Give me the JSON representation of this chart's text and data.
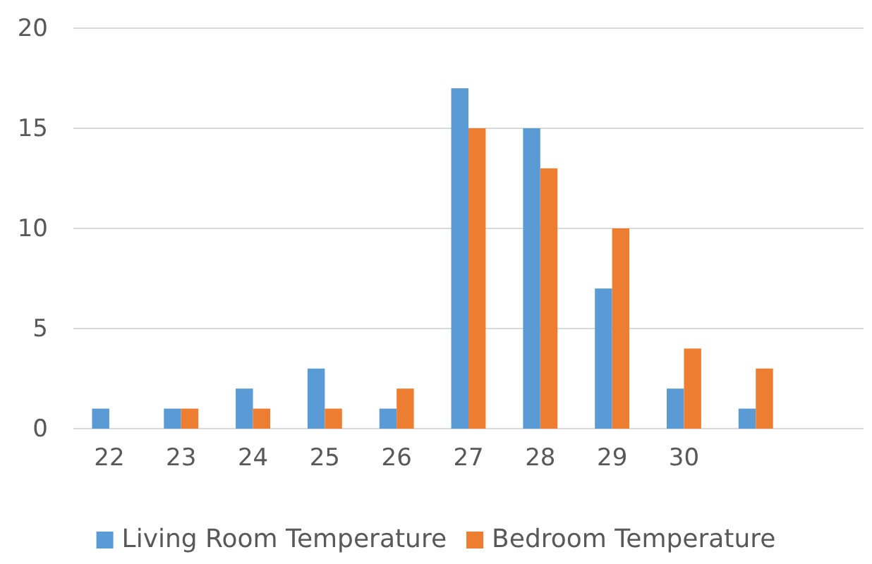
{
  "chart_data": {
    "type": "bar",
    "categories": [
      "22",
      "23",
      "24",
      "25",
      "26",
      "27",
      "28",
      "29",
      "30",
      null,
      null
    ],
    "series": [
      {
        "name": "Living Room Temperature",
        "color": "#5b9bd5",
        "values": [
          1,
          1,
          2,
          3,
          1,
          17,
          15,
          7,
          2,
          1,
          null
        ]
      },
      {
        "name": "Bedroom Temperature",
        "color": "#ed7d31",
        "values": [
          0,
          1,
          1,
          1,
          2,
          15,
          13,
          10,
          4,
          3,
          null
        ]
      }
    ],
    "ylim": [
      0,
      20
    ],
    "yticks": [
      0,
      5,
      10,
      15,
      20
    ],
    "grid": "y",
    "legend": "bottom"
  }
}
